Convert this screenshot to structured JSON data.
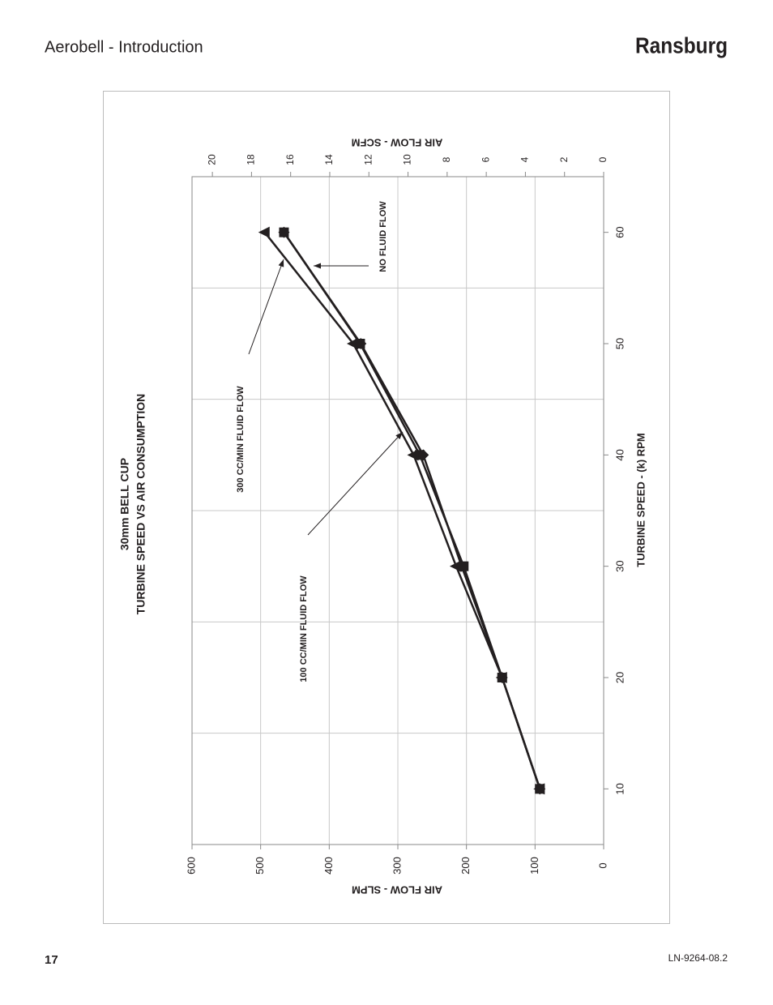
{
  "header": {
    "title": "Aerobell - Introduction",
    "brand": "Ransburg"
  },
  "footer": {
    "page": "17",
    "doc": "LN-9264-08.2"
  },
  "chart_data": {
    "type": "line",
    "title": "30mm BELL CUP",
    "subtitle": "TURBINE SPEED VS  AIR CONSUMPTION",
    "x_label": "TURBINE SPEED - (k) RPM",
    "y_label": "AIR FLOW - SLPM",
    "y2_label": "AIR FLOW - SCFM",
    "x": [
      10,
      20,
      30,
      40,
      50,
      60
    ],
    "xlim": [
      5,
      65
    ],
    "xticks": [
      10,
      20,
      30,
      40,
      50,
      60
    ],
    "xgrid": [
      15,
      25,
      35,
      45,
      55
    ],
    "ylim": [
      0,
      600
    ],
    "yticks": [
      0,
      100,
      200,
      300,
      400,
      500,
      600
    ],
    "y2lim": [
      0,
      21.04
    ],
    "y2ticks": [
      0,
      2,
      4,
      6,
      8,
      10,
      12,
      14,
      16,
      18,
      20
    ],
    "grid": true,
    "series": [
      {
        "name": "NO FLUID FLOW",
        "color": "#231f20",
        "marker": "square",
        "values": [
          93,
          148,
          204,
          268,
          355,
          466
        ]
      },
      {
        "name": "300 CC/MIN FLUID FLOW",
        "color": "#231f20",
        "marker": "triangle",
        "values": [
          93,
          148,
          215,
          277,
          365,
          494
        ]
      },
      {
        "name": "100 CC/MIN FLUID FLOW",
        "color": "#231f20",
        "marker": "diamond",
        "values": [
          93,
          148,
          207,
          263,
          354,
          466
        ]
      }
    ]
  }
}
